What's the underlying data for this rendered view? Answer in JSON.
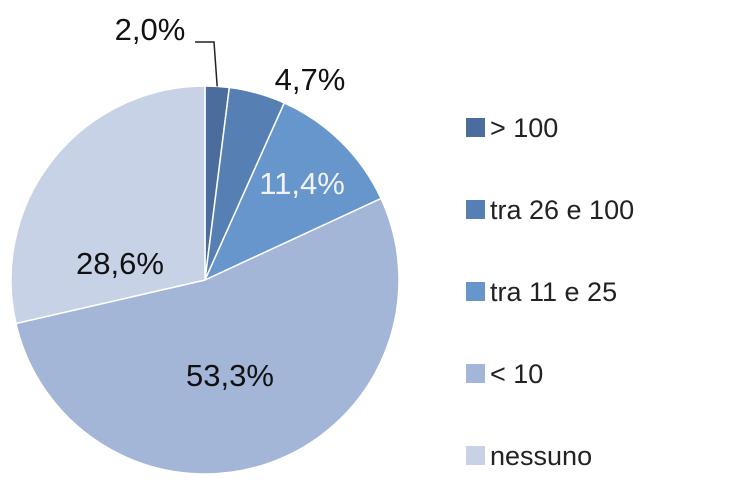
{
  "chart_data": {
    "type": "pie",
    "categories": [
      "> 100",
      "tra 26 e 100",
      "tra 11 e 25",
      "< 10",
      "nessuno"
    ],
    "values": [
      2.0,
      4.7,
      11.4,
      53.3,
      28.6
    ],
    "value_labels": [
      "2,0%",
      "4,7%",
      "11,4%",
      "53,3%",
      "28,6%"
    ],
    "colors": [
      "#4a6d9e",
      "#567fb4",
      "#6696cc",
      "#a4b6d8",
      "#c8d2e6"
    ],
    "legend": "right"
  }
}
